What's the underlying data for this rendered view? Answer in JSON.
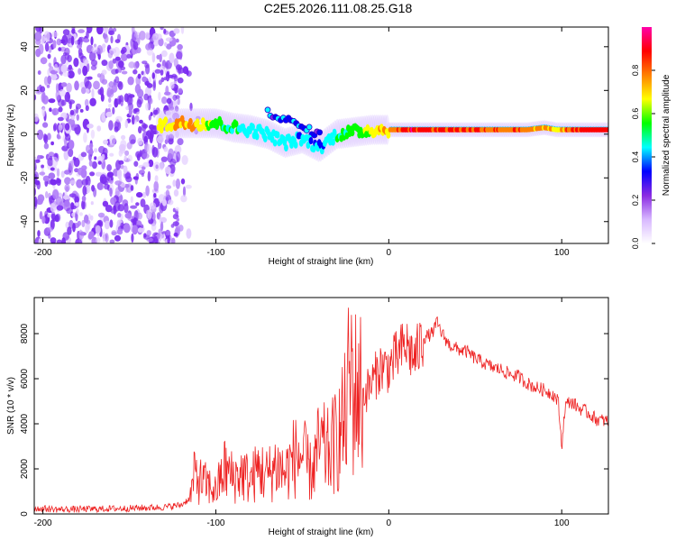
{
  "title": "C2E5.2026.111.08.25.G18",
  "chart_data": [
    {
      "type": "heatmap",
      "xlabel": "Height of straight line (km)",
      "ylabel": "Frequency (Hz)",
      "xlim": [
        -205,
        127
      ],
      "ylim": [
        -50,
        49
      ],
      "xticks": [
        -200,
        -100,
        0,
        100
      ],
      "xtick_labels": [
        "-200",
        "-100",
        "0",
        "100"
      ],
      "yticks": [
        -40,
        -20,
        0,
        20,
        40
      ],
      "ytick_labels": [
        "-40",
        "-20",
        "0",
        "20",
        "40"
      ],
      "noise_region": {
        "x_from": -205,
        "x_to": -120,
        "ylim": [
          -50,
          49
        ]
      },
      "ridge": [
        {
          "x": -133,
          "f": 4,
          "amp": 0.7
        },
        {
          "x": -120,
          "f": 5,
          "amp": 0.8
        },
        {
          "x": -110,
          "f": 5,
          "amp": 0.8
        },
        {
          "x": -100,
          "f": 5,
          "amp": 0.6
        },
        {
          "x": -90,
          "f": 3,
          "amp": 0.55
        },
        {
          "x": -80,
          "f": 2,
          "amp": 0.5
        },
        {
          "x": -70,
          "f": 0,
          "amp": 0.5
        },
        {
          "x": -60,
          "f": -4,
          "amp": 0.45
        },
        {
          "x": -50,
          "f": -2,
          "amp": 0.45
        },
        {
          "x": -40,
          "f": -6,
          "amp": 0.4
        },
        {
          "x": -30,
          "f": 0,
          "amp": 0.55
        },
        {
          "x": -20,
          "f": 1,
          "amp": 0.6
        },
        {
          "x": -10,
          "f": 2,
          "amp": 0.7
        },
        {
          "x": 0,
          "f": 2,
          "amp": 0.8
        },
        {
          "x": 10,
          "f": 2,
          "amp": 0.95
        },
        {
          "x": 30,
          "f": 2,
          "amp": 0.95
        },
        {
          "x": 60,
          "f": 2,
          "amp": 0.9
        },
        {
          "x": 80,
          "f": 2,
          "amp": 0.85
        },
        {
          "x": 90,
          "f": 3,
          "amp": 0.8
        },
        {
          "x": 97,
          "f": 2,
          "amp": 0.75
        },
        {
          "x": 110,
          "f": 2,
          "amp": 0.95
        },
        {
          "x": 127,
          "f": 2,
          "amp": 0.95
        }
      ],
      "secondary_ridge": [
        {
          "x": -70,
          "f": 10
        },
        {
          "x": -60,
          "f": 7
        },
        {
          "x": -50,
          "f": 3
        },
        {
          "x": -40,
          "f": 0
        }
      ],
      "colorbar": {
        "label": "Normalized spectral amplitude",
        "range": [
          0,
          1
        ],
        "ticks": [
          0.0,
          0.2,
          0.4,
          0.6,
          0.8
        ],
        "tick_labels": [
          "0.0",
          "0.2",
          "0.4",
          "0.6",
          "0.8"
        ],
        "colors": [
          "#ffffff",
          "#d8b8ff",
          "#8a2be2",
          "#0000ff",
          "#00ffff",
          "#00ff00",
          "#ffff00",
          "#ff8000",
          "#ff0000",
          "#ff00aa"
        ]
      },
      "series_color_dot": "#8a2be2"
    },
    {
      "type": "line",
      "xlabel": "Height of straight line (km)",
      "ylabel": "SNR (10 * v/v)",
      "xlim": [
        -205,
        127
      ],
      "ylim": [
        0,
        9600
      ],
      "xticks": [
        -200,
        -100,
        0,
        100
      ],
      "xtick_labels": [
        "-200",
        "-100",
        "0",
        "100"
      ],
      "yticks": [
        0,
        2000,
        4000,
        6000,
        8000
      ],
      "ytick_labels": [
        "0",
        "2000",
        "4000",
        "6000",
        "8000"
      ],
      "color": "#ee2222",
      "series": [
        {
          "name": "SNR",
          "x": [
            -205,
            -190,
            -170,
            -150,
            -130,
            -120,
            -115,
            -112,
            -110,
            -105,
            -100,
            -95,
            -90,
            -85,
            -80,
            -75,
            -70,
            -65,
            -60,
            -55,
            -50,
            -45,
            -40,
            -35,
            -30,
            -25,
            -22,
            -20,
            -18,
            -15,
            -10,
            -5,
            0,
            5,
            10,
            15,
            20,
            25,
            28,
            30,
            35,
            40,
            45,
            50,
            55,
            60,
            65,
            70,
            75,
            80,
            85,
            90,
            95,
            98,
            100,
            102,
            105,
            110,
            115,
            120,
            127
          ],
          "y": [
            250,
            200,
            220,
            250,
            300,
            400,
            700,
            1800,
            1500,
            1300,
            1000,
            2000,
            1600,
            1800,
            1500,
            2000,
            1700,
            2200,
            1800,
            2500,
            2600,
            1800,
            3000,
            2700,
            3300,
            4200,
            6500,
            5200,
            5600,
            5200,
            5800,
            6500,
            6500,
            7000,
            7500,
            6900,
            7800,
            8000,
            8500,
            8100,
            7500,
            7300,
            7200,
            6900,
            6700,
            6500,
            6400,
            6200,
            6100,
            5800,
            5600,
            5500,
            5300,
            5000,
            3000,
            4800,
            5000,
            4700,
            4500,
            4200,
            4100
          ]
        }
      ]
    }
  ]
}
